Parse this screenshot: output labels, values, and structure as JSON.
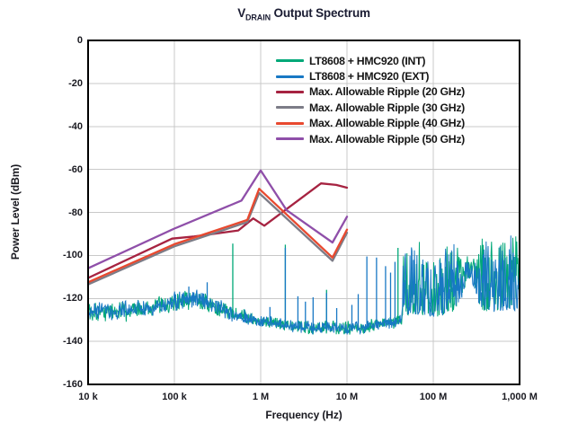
{
  "title": {
    "prefix": "V",
    "subscript": "DRAIN",
    "rest": " Output Spectrum"
  },
  "chart_data": {
    "type": "line",
    "title": "V_DRAIN Output Spectrum",
    "xlabel": "Frequency (Hz)",
    "ylabel": "Power Level (dBm)",
    "x_scale": "log",
    "x_range_hz": [
      10000,
      1000000000
    ],
    "y_range_dbm": [
      -160,
      0
    ],
    "grid": true,
    "legend_position": "top-right-inside",
    "x_ticks": [
      {
        "f": 10000,
        "label": "10 k"
      },
      {
        "f": 100000,
        "label": "100 k"
      },
      {
        "f": 1000000,
        "label": "1 M"
      },
      {
        "f": 10000000,
        "label": "10 M"
      },
      {
        "f": 100000000,
        "label": "100 M"
      },
      {
        "f": 1000000000,
        "label": "1,000 M"
      }
    ],
    "y_ticks": [
      {
        "v": 0,
        "label": "0"
      },
      {
        "v": -20,
        "label": "-20"
      },
      {
        "v": -40,
        "label": "-40"
      },
      {
        "v": -60,
        "label": "-60"
      },
      {
        "v": -80,
        "label": "-80"
      },
      {
        "v": -100,
        "label": "-100"
      },
      {
        "v": -120,
        "label": "-120"
      },
      {
        "v": -140,
        "label": "-140"
      },
      {
        "v": -160,
        "label": "-160"
      }
    ],
    "series": [
      {
        "id": "int",
        "label": "LT8608 + HMC920 (INT)",
        "color": "#00A878",
        "kind": "measured-noise",
        "seed": 101
      },
      {
        "id": "ext",
        "label": "LT8608 + HMC920 (EXT)",
        "color": "#1878C4",
        "kind": "measured-noise",
        "seed": 202
      },
      {
        "id": "r20",
        "label": "Max. Allowable Ripple (20 GHz)",
        "color": "#A62341",
        "kind": "line",
        "points": [
          [
            10000,
            -110.5
          ],
          [
            94000,
            -92.2
          ],
          [
            170000,
            -91.2
          ],
          [
            550000,
            -88.4
          ],
          [
            820000,
            -82.8
          ],
          [
            1100000,
            -86.2
          ],
          [
            5000000,
            -66.5
          ],
          [
            7500000,
            -67.2
          ],
          [
            10000000,
            -68.5
          ]
        ]
      },
      {
        "id": "r30",
        "label": "Max. Allowable Ripple (30 GHz)",
        "color": "#7C7C87",
        "kind": "line",
        "points": [
          [
            10000,
            -113.5
          ],
          [
            100000,
            -95.8
          ],
          [
            700000,
            -84.5
          ],
          [
            960000,
            -71
          ],
          [
            6800000,
            -102.5
          ],
          [
            10000000,
            -89.5
          ]
        ]
      },
      {
        "id": "r40",
        "label": "Max. Allowable Ripple (40 GHz)",
        "color": "#E8492F",
        "kind": "line",
        "points": [
          [
            10000,
            -112.5
          ],
          [
            100000,
            -94.8
          ],
          [
            700000,
            -83.5
          ],
          [
            960000,
            -69
          ],
          [
            6800000,
            -101
          ],
          [
            10000000,
            -88
          ]
        ]
      },
      {
        "id": "r50",
        "label": "Max. Allowable Ripple (50 GHz)",
        "color": "#8F4FA9",
        "kind": "line",
        "points": [
          [
            10000,
            -106
          ],
          [
            100000,
            -87.5
          ],
          [
            600000,
            -74.5
          ],
          [
            1000000,
            -60.5
          ],
          [
            2000000,
            -79
          ],
          [
            6800000,
            -94
          ],
          [
            10000000,
            -82
          ]
        ]
      }
    ],
    "noise_model": {
      "quiet_band": [
        [
          10000,
          -129,
          -122.5
        ],
        [
          20000,
          -129.5,
          -123
        ],
        [
          40000,
          -128.5,
          -122
        ],
        [
          70000,
          -126.5,
          -120
        ],
        [
          120000,
          -124,
          -117.5
        ],
        [
          180000,
          -123,
          -116.5
        ],
        [
          260000,
          -125.5,
          -119.5
        ],
        [
          400000,
          -128.5,
          -123
        ],
        [
          600000,
          -131,
          -126
        ],
        [
          1000000,
          -133,
          -128.5
        ],
        [
          2000000,
          -134.5,
          -130.5
        ],
        [
          4000000,
          -136,
          -131.5
        ],
        [
          10000000,
          -136,
          -131.5
        ],
        [
          20000000,
          -135,
          -130.5
        ],
        [
          30000000,
          -133.5,
          -129.5
        ],
        [
          42000000,
          -132,
          -128
        ]
      ],
      "forest_band": [
        [
          43000000,
          -129,
          -101
        ],
        [
          55000000,
          -128,
          -96
        ],
        [
          70000000,
          -127.5,
          -95
        ],
        [
          90000000,
          -128.5,
          -100
        ],
        [
          110000000,
          -128.5,
          -103
        ],
        [
          140000000,
          -127.5,
          -96
        ],
        [
          170000000,
          -126.5,
          -94
        ],
        [
          210000000,
          -121,
          -99
        ],
        [
          245000000,
          -112.5,
          -101
        ],
        [
          275000000,
          -111,
          -100
        ],
        [
          310000000,
          -118,
          -97
        ],
        [
          360000000,
          -125.5,
          -92.5
        ],
        [
          450000000,
          -126.5,
          -91
        ],
        [
          600000000,
          -126,
          -92
        ],
        [
          800000000,
          -125.5,
          -89.5
        ],
        [
          1000000000,
          -126,
          -95
        ]
      ],
      "spikes": {
        "int": [
          [
            475000,
            -94.5
          ],
          [
            1930000,
            -95
          ],
          [
            5800000,
            -116
          ],
          [
            39000000,
            -96.5
          ]
        ],
        "ext": [
          [
            147000,
            -114.5
          ],
          [
            240000,
            -112.5
          ],
          [
            1280000,
            -124
          ],
          [
            1930000,
            -96.5
          ],
          [
            2700000,
            -119
          ],
          [
            3300000,
            -121.5
          ],
          [
            4050000,
            -119.5
          ],
          [
            5800000,
            -117.5
          ],
          [
            7600000,
            -124.5
          ],
          [
            11400000,
            -123
          ],
          [
            13500000,
            -118
          ],
          [
            17000000,
            -100.5
          ],
          [
            22000000,
            -101
          ],
          [
            28000000,
            -105
          ],
          [
            32000000,
            -108
          ],
          [
            36000000,
            -103
          ]
        ]
      }
    },
    "grid_color": "#c9c9c9",
    "frame_color": "#000000"
  }
}
